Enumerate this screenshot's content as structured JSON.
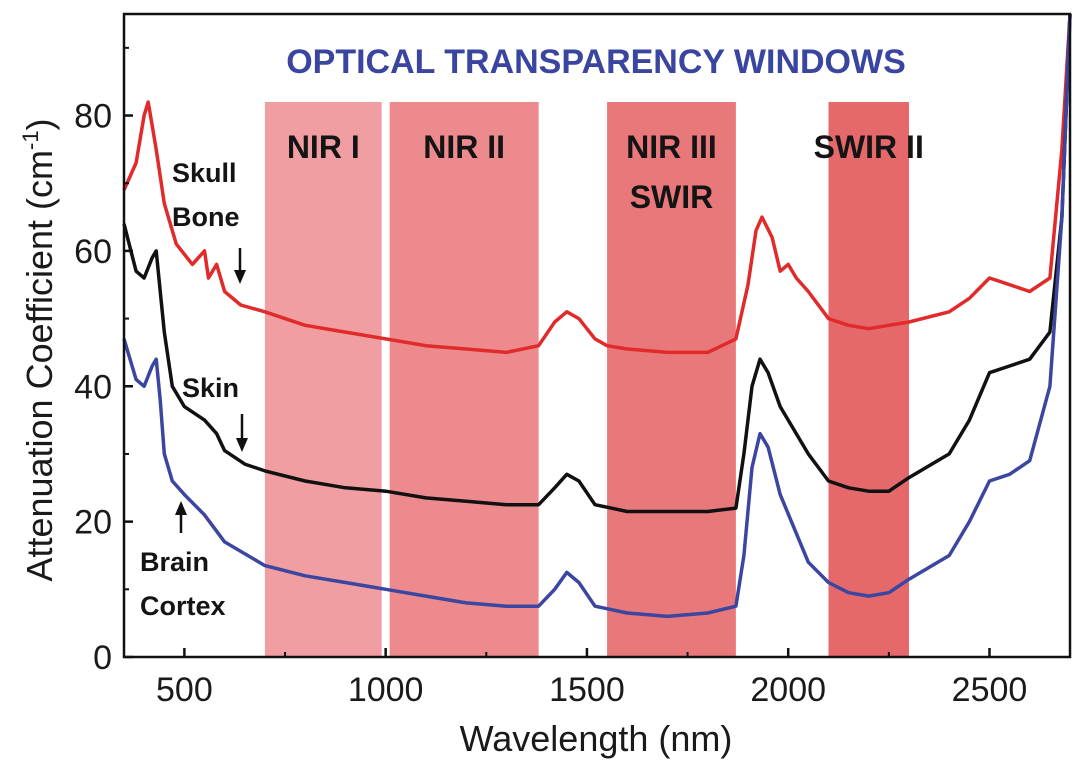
{
  "chart_data": {
    "type": "line",
    "title": "OPTICAL TRANSPARENCY WINDOWS",
    "xlabel": "Wavelength (nm)",
    "ylabel_main": "Attenuation Coefficient (cm",
    "ylabel_sup": "-1",
    "ylabel_close": ")",
    "xlim": [
      350,
      2700
    ],
    "ylim": [
      0,
      95
    ],
    "xticks": [
      500,
      1000,
      1500,
      2000,
      2500
    ],
    "xtick_labels": [
      "500",
      "1000",
      "1500",
      "2000",
      "2500"
    ],
    "yticks": [
      0,
      20,
      40,
      60,
      80
    ],
    "ytick_labels": [
      "0",
      "20",
      "40",
      "60",
      "80"
    ],
    "grid": false,
    "bands": [
      {
        "label_lines": [
          "NIR I"
        ],
        "x_start": 700,
        "x_end": 990,
        "color": "#f09ea1"
      },
      {
        "label_lines": [
          "NIR II"
        ],
        "x_start": 1010,
        "x_end": 1380,
        "color": "#ec8a8d"
      },
      {
        "label_lines": [
          "NIR III",
          "SWIR"
        ],
        "x_start": 1550,
        "x_end": 1870,
        "color": "#e9787b"
      },
      {
        "label_lines": [
          "SWIR II"
        ],
        "x_start": 2100,
        "x_end": 2300,
        "color": "#e5686b"
      }
    ],
    "series": [
      {
        "name": "Skull Bone",
        "label_lines": [
          "Skull",
          "Bone"
        ],
        "color": "#e12a2a",
        "x": [
          350,
          380,
          400,
          410,
          430,
          450,
          480,
          520,
          550,
          560,
          580,
          600,
          640,
          700,
          800,
          900,
          1000,
          1100,
          1200,
          1300,
          1380,
          1420,
          1450,
          1480,
          1520,
          1550,
          1600,
          1700,
          1800,
          1870,
          1900,
          1920,
          1935,
          1960,
          1980,
          2000,
          2020,
          2050,
          2100,
          2150,
          2200,
          2250,
          2300,
          2400,
          2450,
          2500,
          2550,
          2600,
          2650,
          2680,
          2700
        ],
        "y": [
          69,
          73,
          80,
          82,
          75,
          67,
          61,
          58,
          60,
          56,
          58,
          54,
          52,
          51,
          49,
          48,
          47,
          46,
          45.5,
          45,
          46,
          49.5,
          51,
          50,
          47,
          46,
          45.5,
          45,
          45,
          47,
          55,
          63,
          65,
          62,
          57,
          58,
          56,
          54,
          50,
          49,
          48.5,
          49,
          49.5,
          51,
          53,
          56,
          55,
          54,
          56,
          75,
          95
        ]
      },
      {
        "name": "Skin",
        "label_lines": [
          "Skin"
        ],
        "color": "#111111",
        "x": [
          350,
          380,
          400,
          420,
          430,
          450,
          470,
          500,
          550,
          580,
          600,
          650,
          700,
          800,
          900,
          1000,
          1100,
          1200,
          1300,
          1380,
          1420,
          1450,
          1480,
          1520,
          1560,
          1600,
          1700,
          1800,
          1870,
          1890,
          1910,
          1930,
          1950,
          1980,
          2050,
          2100,
          2150,
          2200,
          2250,
          2300,
          2400,
          2450,
          2500,
          2550,
          2600,
          2650,
          2680,
          2700
        ],
        "y": [
          64,
          57,
          56,
          59,
          60,
          48,
          40,
          37,
          35,
          33,
          30.5,
          28.5,
          27.5,
          26,
          25,
          24.5,
          23.5,
          23,
          22.5,
          22.5,
          25,
          27,
          26,
          22.5,
          22,
          21.5,
          21.5,
          21.5,
          22,
          30,
          40,
          44,
          42,
          37,
          30,
          26,
          25,
          24.5,
          24.5,
          26.5,
          30,
          35,
          42,
          43,
          44,
          48,
          65,
          95
        ]
      },
      {
        "name": "Brain Cortex",
        "label_lines": [
          "Brain",
          "Cortex"
        ],
        "color": "#3b46a0",
        "x": [
          350,
          380,
          400,
          420,
          430,
          440,
          450,
          470,
          500,
          550,
          600,
          700,
          800,
          900,
          1000,
          1100,
          1200,
          1300,
          1380,
          1420,
          1450,
          1480,
          1520,
          1560,
          1600,
          1700,
          1800,
          1870,
          1890,
          1910,
          1930,
          1950,
          1980,
          2050,
          2100,
          2150,
          2200,
          2250,
          2300,
          2400,
          2450,
          2500,
          2550,
          2600,
          2650,
          2680,
          2700
        ],
        "y": [
          47,
          41,
          40,
          43,
          44,
          38,
          30,
          26,
          24,
          21,
          17,
          13.5,
          12,
          11,
          10,
          9,
          8,
          7.5,
          7.5,
          10,
          12.5,
          11,
          7.5,
          7,
          6.5,
          6,
          6.5,
          7.5,
          15,
          28,
          33,
          31,
          24,
          14,
          11,
          9.5,
          9,
          9.5,
          11.5,
          15,
          20,
          26,
          27,
          29,
          40,
          65,
          95
        ]
      }
    ]
  }
}
